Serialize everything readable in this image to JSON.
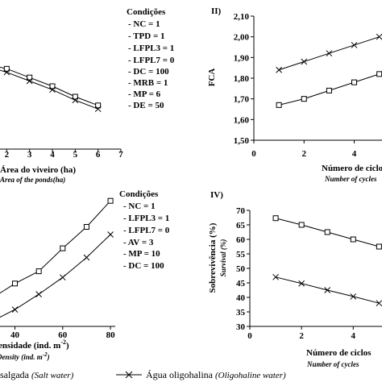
{
  "chart_data": [
    {
      "id": "p1",
      "type": "line",
      "panel_label": "",
      "xlabel": "Área do viveiro (ha)",
      "xlabel_sub": "Area of the ponds(ha)",
      "ylabel": "",
      "ylabel_sub": "",
      "xlim": [
        1,
        7
      ],
      "ylim": [
        1.5,
        2.1
      ],
      "xticks": [
        "2",
        "3",
        "4",
        "5",
        "6",
        "7"
      ],
      "yticks": [],
      "series": [
        {
          "marker": "square",
          "x": [
            1,
            2,
            3,
            4,
            5,
            6
          ],
          "y": [
            1.99,
            1.96,
            1.91,
            1.86,
            1.8,
            1.75
          ]
        },
        {
          "marker": "x",
          "x": [
            1,
            2,
            3,
            4,
            5,
            6
          ],
          "y": [
            1.98,
            1.94,
            1.89,
            1.84,
            1.78,
            1.73
          ]
        }
      ],
      "conditions_title": "Condições",
      "conditions": [
        "- NC = 1",
        "- TPD = 1",
        "- LFPL3 = 1",
        "- LFPL7 = 0",
        "- DC = 100",
        "- MRB = 1",
        "- MP = 6",
        "- DE = 50"
      ]
    },
    {
      "id": "p2",
      "type": "line",
      "panel_label": "II)",
      "xlabel": "Número de ciclos",
      "xlabel_sub": "Number of cycles",
      "ylabel": "FCA",
      "ylabel_sub": "",
      "xlim": [
        0,
        5.3
      ],
      "ylim": [
        1.5,
        2.1
      ],
      "xticks": [
        "0",
        "2",
        "4"
      ],
      "yticks": [
        "1,50",
        "1,60",
        "1,70",
        "1,80",
        "1,90",
        "2,00",
        "2,10"
      ],
      "series": [
        {
          "marker": "x",
          "x": [
            1,
            2,
            3,
            4,
            5
          ],
          "y": [
            1.84,
            1.88,
            1.92,
            1.96,
            2.0
          ]
        },
        {
          "marker": "square",
          "x": [
            1,
            2,
            3,
            4,
            5
          ],
          "y": [
            1.67,
            1.7,
            1.74,
            1.78,
            1.82
          ]
        }
      ]
    },
    {
      "id": "p3",
      "type": "line",
      "panel_label": "",
      "xlabel": "ensidade (ind. m",
      "xlabel_sup": "-2",
      "xlabel_end": ")",
      "xlabel_sub": "Density (ind. m",
      "xlabel_sub_sup": "-2",
      "xlabel_sub_end": ")",
      "ylabel": "",
      "xlim": [
        27,
        82
      ],
      "ylim": [
        0,
        10
      ],
      "xticks": [
        "40",
        "60",
        "80"
      ],
      "yticks": [],
      "series": [
        {
          "marker": "square",
          "x": [
            30,
            40,
            50,
            60,
            70,
            80
          ],
          "y": [
            1.8,
            2.8,
            3.6,
            5.1,
            6.5,
            8.2
          ]
        },
        {
          "marker": "x",
          "x": [
            30,
            40,
            50,
            60,
            70,
            80
          ],
          "y": [
            0.3,
            1.1,
            2.1,
            3.2,
            4.5,
            6.0
          ]
        }
      ],
      "conditions_title": "Condições",
      "conditions": [
        "- NC = 1",
        "- LFPL3 = 1",
        "- LFPL7 = 0",
        "- AV = 3",
        "- MP = 10",
        "- DC = 100"
      ]
    },
    {
      "id": "p4",
      "type": "line",
      "panel_label": "IV)",
      "xlabel": "Número de ciclos",
      "xlabel_sub": "Number of cycles",
      "ylabel": "Sobrevivência (%)",
      "ylabel_sub": "Survival (%)",
      "xlim": [
        0,
        5.3
      ],
      "ylim": [
        30,
        70
      ],
      "xticks": [
        "0",
        "2",
        "4"
      ],
      "yticks": [
        "30",
        "35",
        "40",
        "45",
        "50",
        "55",
        "60",
        "65",
        "70"
      ],
      "series": [
        {
          "marker": "square",
          "x": [
            1,
            2,
            3,
            4,
            5
          ],
          "y": [
            67.3,
            65,
            62.5,
            60,
            57.5
          ]
        },
        {
          "marker": "x",
          "x": [
            1,
            2,
            3,
            4,
            5
          ],
          "y": [
            47,
            44.8,
            42.5,
            40.3,
            38
          ]
        }
      ]
    }
  ],
  "legend": {
    "salt": "salgada",
    "salt_en": "(Salt water)",
    "oligo": "Água oligohalina",
    "oligo_en": "(Oligohaline water)"
  }
}
